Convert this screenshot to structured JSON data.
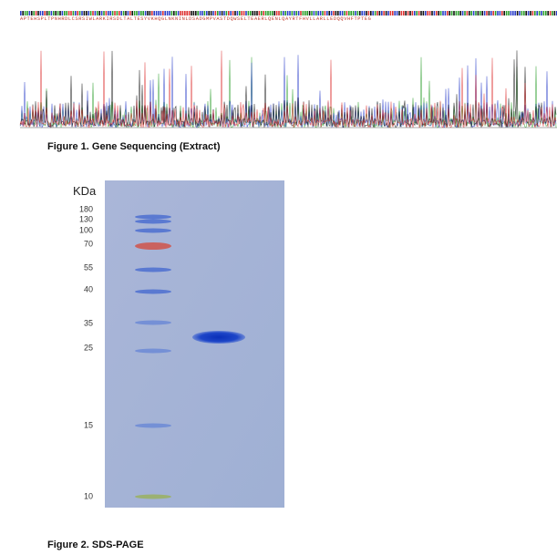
{
  "sequence": {
    "protein": "APTEHSPLTPNHRDLCSRSIWLARKIRSDLTALTESYVKHQGLNKNINLDSADGMPVASTDQWSELTEAERLQENLQAYRTFHVLLARLLEDQQVHFTPTEG"
  },
  "figure1": {
    "caption": "Figure 1. Gene Sequencing (Extract)"
  },
  "figure2": {
    "unit": "KDa",
    "markers": [
      180,
      130,
      100,
      70,
      55,
      40,
      35,
      25,
      15,
      10
    ],
    "caption": "Figure 2. SDS-PAGE"
  }
}
